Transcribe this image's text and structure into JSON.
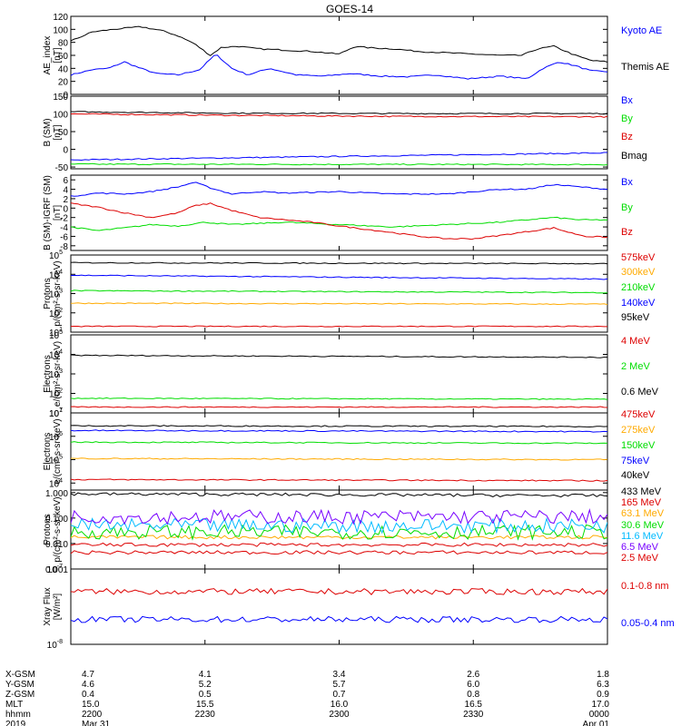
{
  "title": "GOES-14",
  "colors": {
    "black": "#000000",
    "blue": "#0000ff",
    "red": "#dd0000",
    "green": "#00dd00",
    "orange": "#ffaa00",
    "cyan": "#00bbff",
    "yellow": "#eeee00",
    "purple": "#7700ff"
  },
  "chart_data": [
    {
      "type": "line",
      "ylabel": [
        "AE_index",
        "[nT]"
      ],
      "ylim": [
        0,
        120
      ],
      "yscale": "linear",
      "ticks": [
        {
          "v": 0,
          "t": "0"
        },
        {
          "v": 20,
          "t": "20"
        },
        {
          "v": 40,
          "t": "40"
        },
        {
          "v": 60,
          "t": "60"
        },
        {
          "v": 80,
          "t": "80"
        },
        {
          "v": 100,
          "t": "100"
        },
        {
          "v": 120,
          "t": "120"
        }
      ],
      "series": [
        {
          "name": "Kyoto AE",
          "color": "#0000ff",
          "x": [
            0,
            0.04,
            0.07,
            0.1,
            0.13,
            0.16,
            0.2,
            0.24,
            0.27,
            0.3,
            0.33,
            0.37,
            0.42,
            0.47,
            0.52,
            0.58,
            0.63,
            0.68,
            0.74,
            0.8,
            0.85,
            0.88,
            0.91,
            0.94,
            0.97,
            1
          ],
          "y": [
            30,
            38,
            40,
            50,
            40,
            32,
            30,
            38,
            62,
            40,
            30,
            40,
            30,
            28,
            32,
            28,
            27,
            30,
            24,
            28,
            24,
            40,
            50,
            44,
            36,
            35
          ]
        },
        {
          "name": "Themis AE",
          "color": "#000000",
          "x": [
            0,
            0.04,
            0.08,
            0.13,
            0.17,
            0.2,
            0.23,
            0.26,
            0.28,
            0.31,
            0.35,
            0.4,
            0.45,
            0.5,
            0.53,
            0.55,
            0.6,
            0.65,
            0.7,
            0.75,
            0.8,
            0.84,
            0.87,
            0.9,
            0.94,
            0.97,
            1
          ],
          "y": [
            82,
            96,
            100,
            104,
            98,
            90,
            78,
            60,
            72,
            74,
            70,
            68,
            66,
            62,
            74,
            72,
            70,
            66,
            64,
            62,
            60,
            60,
            70,
            74,
            60,
            52,
            50
          ]
        }
      ]
    },
    {
      "type": "line",
      "ylabel": [
        "B (SM)",
        "[nT]"
      ],
      "ylim": [
        -55,
        150
      ],
      "yscale": "linear",
      "ticks": [
        {
          "v": -50,
          "t": "-50"
        },
        {
          "v": 0,
          "t": "0"
        },
        {
          "v": 50,
          "t": "50"
        },
        {
          "v": 100,
          "t": "100"
        },
        {
          "v": 150,
          "t": "150"
        }
      ],
      "series": [
        {
          "name": "Bx",
          "color": "#0000ff",
          "x": [
            0,
            1
          ],
          "y": [
            -30,
            -10
          ]
        },
        {
          "name": "By",
          "color": "#00dd00",
          "x": [
            0,
            1
          ],
          "y": [
            -42,
            -43
          ]
        },
        {
          "name": "Bz",
          "color": "#dd0000",
          "x": [
            0,
            0.3,
            0.6,
            1
          ],
          "y": [
            100,
            96,
            93,
            92
          ]
        },
        {
          "name": "Bmag",
          "color": "#000000",
          "x": [
            0,
            0.3,
            0.6,
            1
          ],
          "y": [
            106,
            102,
            101,
            101
          ]
        }
      ]
    },
    {
      "type": "line",
      "ylabel": [
        "B (SM)-IGRF (SM)",
        "[nT]"
      ],
      "ylim": [
        -9,
        7
      ],
      "yscale": "linear",
      "ticks": [
        {
          "v": -8,
          "t": "-8"
        },
        {
          "v": -6,
          "t": "-6"
        },
        {
          "v": -4,
          "t": "-4"
        },
        {
          "v": -2,
          "t": "-2"
        },
        {
          "v": 0,
          "t": "0"
        },
        {
          "v": 2,
          "t": "2"
        },
        {
          "v": 4,
          "t": "4"
        },
        {
          "v": 6,
          "t": "6"
        }
      ],
      "series": [
        {
          "name": "Bx",
          "color": "#0000ff",
          "x": [
            0,
            0.05,
            0.1,
            0.15,
            0.2,
            0.23,
            0.26,
            0.3,
            0.35,
            0.4,
            0.5,
            0.6,
            0.7,
            0.75,
            0.8,
            0.85,
            0.9,
            0.95,
            1
          ],
          "y": [
            2.5,
            3.2,
            3,
            3.5,
            4.5,
            5.5,
            4.3,
            3,
            3.5,
            3.2,
            3.5,
            3,
            3,
            3.5,
            4,
            4,
            5,
            4.5,
            4
          ]
        },
        {
          "name": "By",
          "color": "#00dd00",
          "x": [
            0,
            0.05,
            0.1,
            0.15,
            0.2,
            0.25,
            0.3,
            0.4,
            0.5,
            0.6,
            0.7,
            0.8,
            0.85,
            0.9,
            0.95,
            1
          ],
          "y": [
            -4,
            -4.8,
            -4.2,
            -3.5,
            -3.8,
            -3,
            -3.5,
            -3,
            -3.5,
            -4,
            -3.5,
            -3,
            -2.5,
            -2,
            -2.5,
            -2.5
          ]
        },
        {
          "name": "Bz",
          "color": "#dd0000",
          "x": [
            0,
            0.05,
            0.1,
            0.15,
            0.2,
            0.23,
            0.26,
            0.3,
            0.35,
            0.4,
            0.45,
            0.5,
            0.55,
            0.6,
            0.65,
            0.7,
            0.75,
            0.8,
            0.85,
            0.9,
            0.93,
            0.96,
            1
          ],
          "y": [
            1,
            0.2,
            -1,
            -2,
            -1,
            0.5,
            1,
            -0.5,
            -2,
            -2.5,
            -3,
            -3.8,
            -4.5,
            -5.2,
            -6,
            -6.5,
            -6.5,
            -5.8,
            -5,
            -4.2,
            -5.2,
            -6,
            -6.2
          ]
        }
      ]
    },
    {
      "type": "line",
      "ylabel": [
        "Protons",
        "p/(cm²-s-sr-keV)"
      ],
      "ylim": [
        1,
        5
      ],
      "yscale": "log",
      "ticks": [
        {
          "v": 1,
          "t": "10",
          "e": "1"
        },
        {
          "v": 2,
          "t": "10",
          "e": "2"
        },
        {
          "v": 3,
          "t": "10",
          "e": "3"
        },
        {
          "v": 4,
          "t": "10",
          "e": "4"
        },
        {
          "v": 5,
          "t": "10",
          "e": "5"
        }
      ],
      "series": [
        {
          "name": "575keV",
          "color": "#dd0000",
          "x": [
            0,
            1
          ],
          "y": [
            1.3,
            1.3
          ]
        },
        {
          "name": "300keV",
          "color": "#ffaa00",
          "x": [
            0,
            1
          ],
          "y": [
            2.5,
            2.45
          ]
        },
        {
          "name": "210keV",
          "color": "#00dd00",
          "x": [
            0,
            1
          ],
          "y": [
            3.15,
            3.05
          ]
        },
        {
          "name": "140keV",
          "color": "#0000ff",
          "x": [
            0,
            0.5,
            1
          ],
          "y": [
            3.95,
            3.85,
            3.75
          ]
        },
        {
          "name": "95keV",
          "color": "#000000",
          "x": [
            0,
            1
          ],
          "y": [
            4.6,
            4.55
          ]
        }
      ]
    },
    {
      "type": "line",
      "ylabel": [
        "Electrons",
        "e/(cm²-s-sr-keV)"
      ],
      "ylim": [
        1,
        5
      ],
      "yscale": "log",
      "ticks": [
        {
          "v": 1,
          "t": "10",
          "e": "1"
        },
        {
          "v": 2,
          "t": "10",
          "e": "2"
        },
        {
          "v": 3,
          "t": "10",
          "e": "3"
        },
        {
          "v": 4,
          "t": "10",
          "e": "4"
        },
        {
          "v": 5,
          "t": "10",
          "e": "5"
        }
      ],
      "series": [
        {
          "name": "4 MeV",
          "color": "#dd0000",
          "x": [
            0,
            1
          ],
          "y": [
            1.3,
            1.3
          ]
        },
        {
          "name": "2 MeV",
          "color": "#00dd00",
          "x": [
            0,
            1
          ],
          "y": [
            1.75,
            1.7
          ]
        },
        {
          "name": "0.6 MeV",
          "color": "#000000",
          "x": [
            0,
            1
          ],
          "y": [
            3.95,
            3.85
          ]
        }
      ]
    },
    {
      "type": "line",
      "ylabel": [
        "Electrons",
        "e/(cm²-s-sr-keV)"
      ],
      "ylim": [
        3.7,
        7
      ],
      "yscale": "log",
      "ticks": [
        {
          "v": 4,
          "t": "10",
          "e": "4"
        },
        {
          "v": 5,
          "t": "10",
          "e": "5"
        },
        {
          "v": 6,
          "t": "10",
          "e": "6"
        },
        {
          "v": 7,
          "t": "10",
          "e": "7"
        }
      ],
      "series": [
        {
          "name": "475keV",
          "color": "#dd0000",
          "x": [
            0,
            1
          ],
          "y": [
            4.15,
            4.1
          ]
        },
        {
          "name": "275keV",
          "color": "#ffaa00",
          "x": [
            0,
            1
          ],
          "y": [
            5.05,
            5.0
          ]
        },
        {
          "name": "150keV",
          "color": "#00dd00",
          "x": [
            0,
            1
          ],
          "y": [
            5.75,
            5.7
          ]
        },
        {
          "name": "75keV",
          "color": "#0000ff",
          "x": [
            0,
            1
          ],
          "y": [
            6.25,
            6.2
          ]
        },
        {
          "name": "40keV",
          "color": "#000000",
          "x": [
            0,
            1
          ],
          "y": [
            6.45,
            6.42
          ]
        }
      ]
    },
    {
      "type": "line",
      "ylabel": [
        "Protons",
        "p/(cm²-s-sr-keV)"
      ],
      "ylim": [
        -3,
        0.1
      ],
      "yscale": "log",
      "ticks": [
        {
          "v": -3,
          "t": "0.001"
        },
        {
          "v": -2,
          "t": "0.010"
        },
        {
          "v": -1,
          "t": "0.100"
        },
        {
          "v": 0,
          "t": "1.000"
        }
      ],
      "series": [
        {
          "name": "433 MeV",
          "color": "#000000",
          "x": [
            0,
            1
          ],
          "y": [
            -0.05,
            -0.12
          ]
        },
        {
          "name": "165 MeV",
          "color": "#dd0000",
          "x": [
            0,
            1
          ],
          "y": [
            -2.35,
            -2.35
          ]
        },
        {
          "name": "63.1 MeV",
          "color": "#ffaa00",
          "x": [
            0,
            1
          ],
          "y": [
            -1.75,
            -1.75
          ]
        },
        {
          "name": "30.6 MeV",
          "color": "#00dd00",
          "x": [
            0,
            1
          ],
          "y": [
            -1.55,
            -1.55
          ]
        },
        {
          "name": "11.6 MeV",
          "color": "#00bbff",
          "x": [
            0,
            1
          ],
          "y": [
            -1.3,
            -1.3
          ]
        },
        {
          "name": "6.5 MeV",
          "color": "#7700ff",
          "x": [
            0,
            1
          ],
          "y": [
            -0.95,
            -0.95
          ]
        },
        {
          "name": "2.5 MeV",
          "color": "#dd0000",
          "x": [
            0,
            1
          ],
          "y": [
            -2.05,
            -2.05
          ]
        }
      ]
    },
    {
      "type": "line",
      "ylabel": [
        "Xray Flux",
        "[W/m²]"
      ],
      "ylim": [
        -8,
        -7
      ],
      "yscale": "log",
      "ticks": [
        {
          "v": -8,
          "t": "10",
          "e": "-8"
        },
        {
          "v": -7,
          "t": "10",
          "e": "-7"
        }
      ],
      "series": [
        {
          "name": "0.1-0.8 nm",
          "color": "#dd0000",
          "x": [
            0,
            1
          ],
          "y": [
            -7.3,
            -7.3
          ]
        },
        {
          "name": "0.05-0.4 nm",
          "color": "#0000ff",
          "x": [
            0,
            1
          ],
          "y": [
            -7.67,
            -7.67
          ]
        }
      ]
    }
  ],
  "xaxis": {
    "rows": [
      {
        "label": "X-GSM",
        "values": [
          "4.7",
          "4.1",
          "3.4",
          "2.6",
          "1.8"
        ]
      },
      {
        "label": "Y-GSM",
        "values": [
          "4.6",
          "5.2",
          "5.7",
          "6.0",
          "6.3"
        ]
      },
      {
        "label": "Z-GSM",
        "values": [
          "0.4",
          "0.5",
          "0.7",
          "0.8",
          "0.9"
        ]
      },
      {
        "label": "MLT",
        "values": [
          "15.0",
          "15.5",
          "16.0",
          "16.5",
          "17.0"
        ]
      },
      {
        "label": "hhmm",
        "values": [
          "2200",
          "2230",
          "2300",
          "2330",
          "0000"
        ]
      },
      {
        "label": "2019",
        "values": [
          "Mar 31",
          "",
          "",
          "",
          "Apr 01"
        ]
      }
    ]
  }
}
